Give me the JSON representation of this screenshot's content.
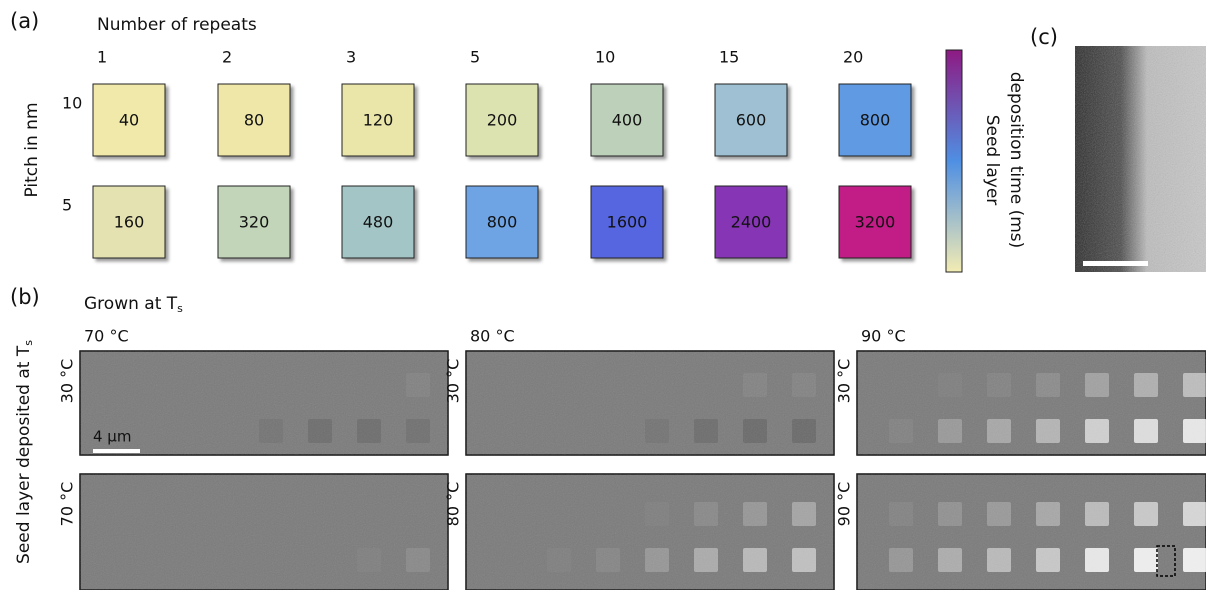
{
  "panel_a": {
    "label": "(a)",
    "repeats_title": "Number of repeats",
    "repeats": [
      "1",
      "2",
      "3",
      "5",
      "10",
      "15",
      "20"
    ],
    "pitch_title": "Pitch in nm",
    "rows": [
      {
        "pitch": "10",
        "values": [
          "40",
          "80",
          "120",
          "200",
          "400",
          "600",
          "800"
        ],
        "colors": [
          "#f0e9a9",
          "#eee7a8",
          "#eae6aa",
          "#dde2b1",
          "#bdd0b9",
          "#9ec0d2",
          "#5e9ae2"
        ]
      },
      {
        "pitch": "5",
        "values": [
          "160",
          "320",
          "480",
          "800",
          "1600",
          "2400",
          "3200"
        ],
        "colors": [
          "#e4e2b1",
          "#c3d5b9",
          "#a4c5c6",
          "#6ea4e4",
          "#5566e0",
          "#8636b5",
          "#c21a86"
        ]
      }
    ],
    "colorbar": {
      "lines": [
        "Seed layer",
        "deposition time (ms)"
      ],
      "colors": [
        "#8e1a83",
        "#4f8fe3",
        "#f3ecb3"
      ]
    }
  },
  "panel_b": {
    "label": "(b)",
    "grown": {
      "text": "Grown at T",
      "subscript": "s"
    },
    "deposited": {
      "text": "Seed layer deposited at T",
      "subscript": "s"
    },
    "columns": [
      {
        "title": "70 °C",
        "rows": [
          "30 °C",
          "70 °C"
        ]
      },
      {
        "title": "80 °C",
        "rows": [
          "30 °C",
          "80 °C"
        ]
      },
      {
        "title": "90 °C",
        "rows": [
          "30 °C",
          "90 °C"
        ]
      }
    ],
    "scale_bar": "4 µm"
  },
  "panel_c": {
    "label": "(c)"
  }
}
